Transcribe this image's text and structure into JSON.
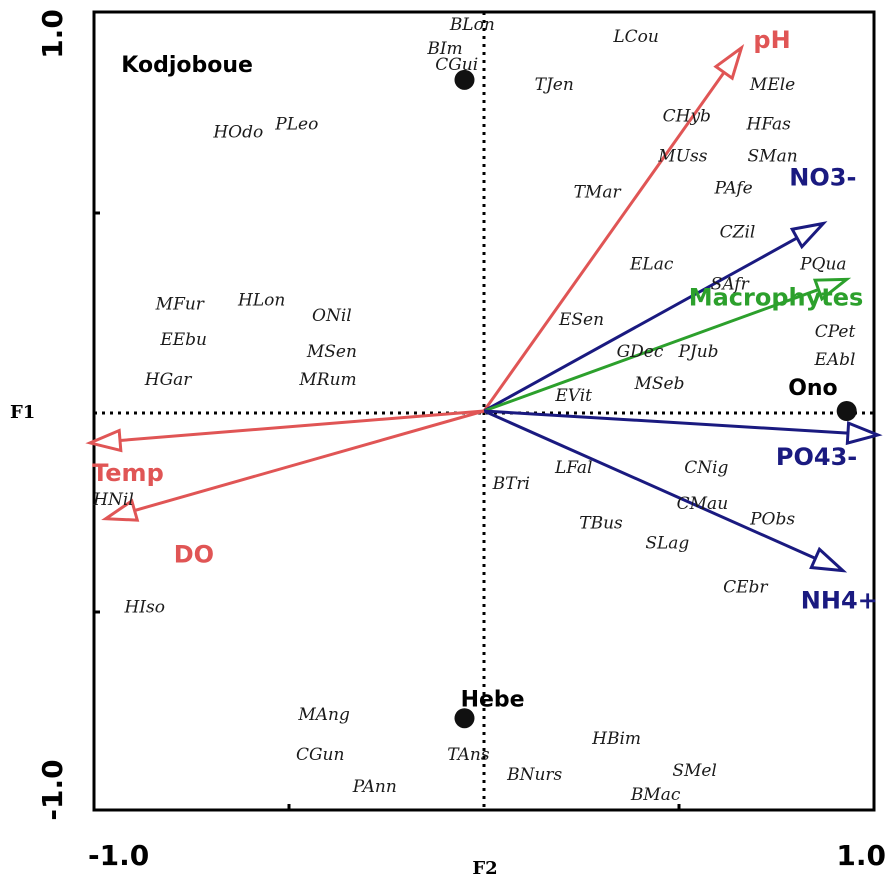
{
  "chart_data": {
    "type": "scatter",
    "title": "",
    "xlabel": "F2",
    "ylabel": "F1",
    "xlim": [
      -1.0,
      1.0
    ],
    "ylim": [
      -1.0,
      1.0
    ],
    "x_ticks": [
      {
        "value": -1.0,
        "label": "-1.0"
      },
      {
        "value": 1.0,
        "label": "1.0"
      }
    ],
    "y_ticks": [
      {
        "value": 1.0,
        "label": "1.0"
      },
      {
        "value": -1.0,
        "label": "-1.0"
      }
    ],
    "grid": false,
    "colors": {
      "physico": "#e05555",
      "nutrient": "#1a1a80",
      "macrophytes": "#2ca02c"
    },
    "vectors": [
      {
        "label": "pH",
        "x": 0.66,
        "y": 0.91,
        "color": "#e05555"
      },
      {
        "label": "NO3-",
        "x": 0.87,
        "y": 0.47,
        "color": "#1a1a80"
      },
      {
        "label": "Macrophytes",
        "x": 0.93,
        "y": 0.33,
        "color": "#2ca02c"
      },
      {
        "label": "PO43-",
        "x": 1.01,
        "y": -0.06,
        "color": "#1a1a80"
      },
      {
        "label": "NH4+",
        "x": 0.92,
        "y": -0.4,
        "color": "#1a1a80"
      },
      {
        "label": "Temp",
        "x": -1.01,
        "y": -0.08,
        "color": "#e05555"
      },
      {
        "label": "DO",
        "x": -0.97,
        "y": -0.27,
        "color": "#e05555"
      }
    ],
    "sites": [
      {
        "label": "Kodjoboue",
        "x": -0.93,
        "y": 0.87,
        "px": -0.05,
        "py": 0.83
      },
      {
        "label": "Ono",
        "x": 0.78,
        "y": 0.06,
        "px": 0.93,
        "py": 0.0
      },
      {
        "label": "Hebe",
        "x": -0.06,
        "y": -0.72,
        "px": -0.05,
        "py": -0.77
      }
    ],
    "species": [
      {
        "label": "BLon",
        "x": -0.03,
        "y": 0.97
      },
      {
        "label": "BIm",
        "x": -0.1,
        "y": 0.91
      },
      {
        "label": "CGui",
        "x": -0.07,
        "y": 0.87
      },
      {
        "label": "LCou",
        "x": 0.39,
        "y": 0.94
      },
      {
        "label": "TJen",
        "x": 0.18,
        "y": 0.82
      },
      {
        "label": "MEle",
        "x": 0.74,
        "y": 0.82
      },
      {
        "label": "HOdo",
        "x": -0.63,
        "y": 0.7
      },
      {
        "label": "PLeo",
        "x": -0.48,
        "y": 0.72
      },
      {
        "label": "CHyb",
        "x": 0.52,
        "y": 0.74
      },
      {
        "label": "HFas",
        "x": 0.73,
        "y": 0.72
      },
      {
        "label": "MUss",
        "x": 0.51,
        "y": 0.64
      },
      {
        "label": "SMan",
        "x": 0.74,
        "y": 0.64
      },
      {
        "label": "TMar",
        "x": 0.29,
        "y": 0.55
      },
      {
        "label": "PAfe",
        "x": 0.64,
        "y": 0.56
      },
      {
        "label": "CZil",
        "x": 0.65,
        "y": 0.45
      },
      {
        "label": "PQua",
        "x": 0.87,
        "y": 0.37
      },
      {
        "label": "ELac",
        "x": 0.43,
        "y": 0.37
      },
      {
        "label": "SAfr",
        "x": 0.63,
        "y": 0.32
      },
      {
        "label": "HLon",
        "x": -0.57,
        "y": 0.28
      },
      {
        "label": "MFur",
        "x": -0.78,
        "y": 0.27
      },
      {
        "label": "ONil",
        "x": -0.39,
        "y": 0.24
      },
      {
        "label": "ESen",
        "x": 0.25,
        "y": 0.23
      },
      {
        "label": "CPet",
        "x": 0.9,
        "y": 0.2
      },
      {
        "label": "EEbu",
        "x": -0.77,
        "y": 0.18
      },
      {
        "label": "MSen",
        "x": -0.39,
        "y": 0.15
      },
      {
        "label": "GDec",
        "x": 0.4,
        "y": 0.15
      },
      {
        "label": "PJub",
        "x": 0.55,
        "y": 0.15
      },
      {
        "label": "EAbl",
        "x": 0.9,
        "y": 0.13
      },
      {
        "label": "HGar",
        "x": -0.81,
        "y": 0.08
      },
      {
        "label": "MRum",
        "x": -0.4,
        "y": 0.08
      },
      {
        "label": "MSeb",
        "x": 0.45,
        "y": 0.07
      },
      {
        "label": "EVit",
        "x": 0.23,
        "y": 0.04
      },
      {
        "label": "LFal",
        "x": 0.23,
        "y": -0.14
      },
      {
        "label": "CNig",
        "x": 0.57,
        "y": -0.14
      },
      {
        "label": "BTri",
        "x": 0.07,
        "y": -0.18
      },
      {
        "label": "CMau",
        "x": 0.56,
        "y": -0.23
      },
      {
        "label": "HNil",
        "x": -0.95,
        "y": -0.22
      },
      {
        "label": "PObs",
        "x": 0.74,
        "y": -0.27
      },
      {
        "label": "TBus",
        "x": 0.3,
        "y": -0.28
      },
      {
        "label": "SLag",
        "x": 0.47,
        "y": -0.33
      },
      {
        "label": "CEbr",
        "x": 0.67,
        "y": -0.44
      },
      {
        "label": "HIso",
        "x": -0.87,
        "y": -0.49
      },
      {
        "label": "MAng",
        "x": -0.41,
        "y": -0.76
      },
      {
        "label": "TAns",
        "x": -0.04,
        "y": -0.86
      },
      {
        "label": "CGun",
        "x": -0.42,
        "y": -0.86
      },
      {
        "label": "BNurs",
        "x": 0.13,
        "y": -0.91
      },
      {
        "label": "HBim",
        "x": 0.34,
        "y": -0.82
      },
      {
        "label": "SMel",
        "x": 0.54,
        "y": -0.9
      },
      {
        "label": "PAnn",
        "x": -0.28,
        "y": -0.94
      },
      {
        "label": "BMac",
        "x": 0.44,
        "y": -0.96
      }
    ]
  }
}
